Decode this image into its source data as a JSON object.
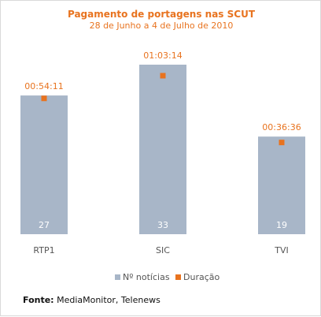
{
  "chart_data": {
    "type": "bar",
    "title": "Pagamento de portagens nas SCUT",
    "subtitle": "28 de Junho a 4 de Julho de 2010",
    "categories": [
      "RTP1",
      "SIC",
      "TVI"
    ],
    "series": [
      {
        "name": "Nº notícias",
        "values": [
          27,
          33,
          19
        ],
        "color": "#a8b6c8"
      },
      {
        "name": "Duração",
        "values": [
          "00:54:11",
          "01:03:14",
          "00:36:36"
        ],
        "color": "#e8731f"
      }
    ],
    "legend_position": "bottom"
  },
  "source": {
    "label": "Fonte:",
    "text": "MediaMonitor, Telenews"
  }
}
